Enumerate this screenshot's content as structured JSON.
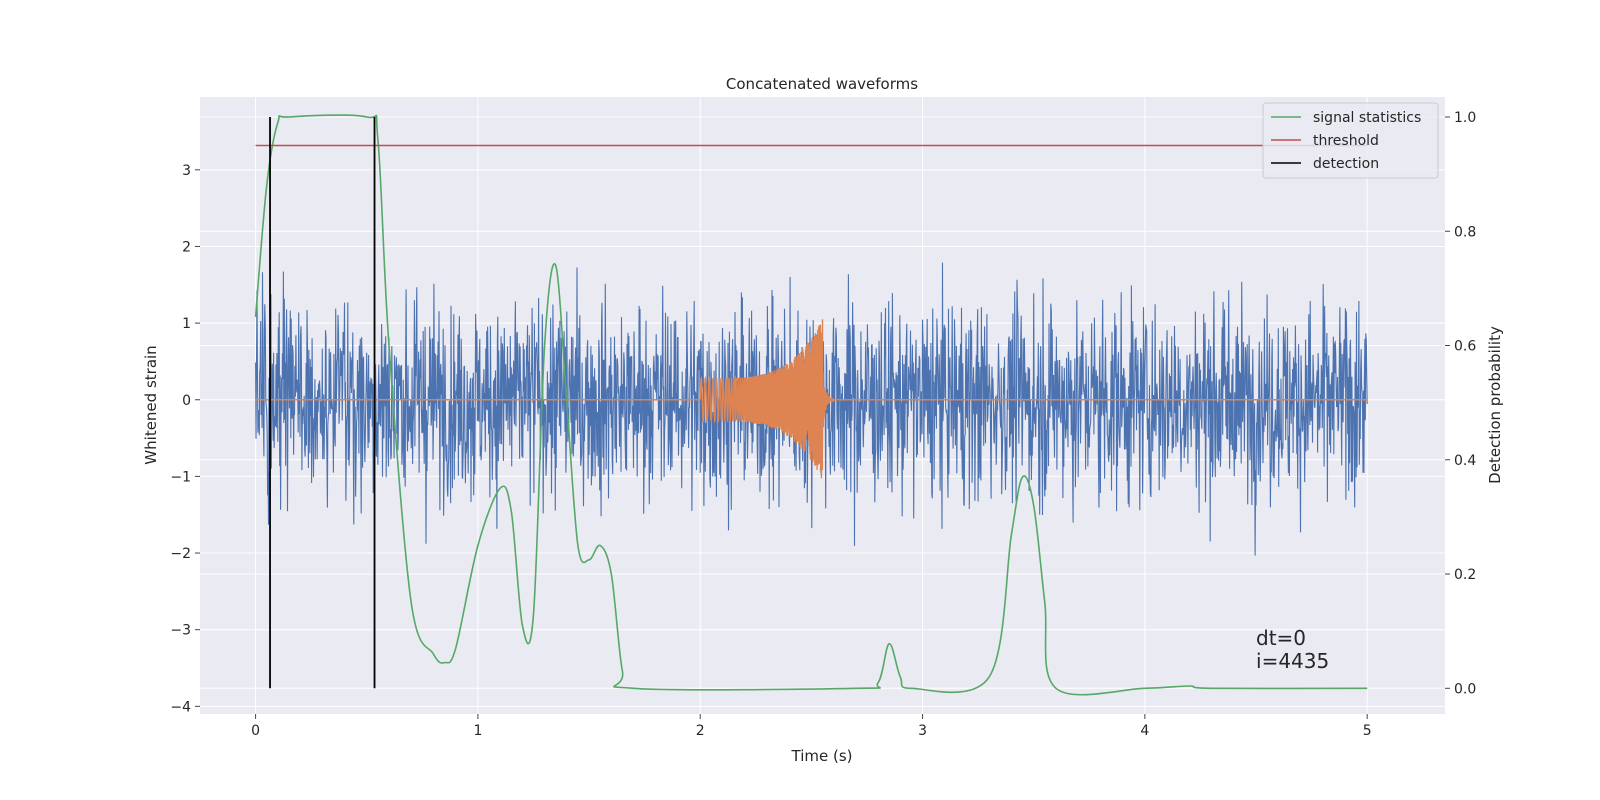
{
  "chart_data": {
    "type": "line",
    "title": "Concatenated waveforms",
    "xlabel": "Time (s)",
    "ylabel": "Whitened strain",
    "y2label": "Detection probability",
    "xlim": [
      -0.25,
      5.35
    ],
    "ylim": [
      -4.1,
      3.95
    ],
    "y2lim": [
      -0.045,
      1.035
    ],
    "xticks": [
      0,
      1,
      2,
      3,
      4,
      5
    ],
    "yticks": [
      -4,
      -3,
      -2,
      -1,
      0,
      1,
      2,
      3
    ],
    "y2ticks": [
      0.0,
      0.2,
      0.4,
      0.6,
      0.8,
      1.0
    ],
    "grid": true,
    "legend_position": "upper right",
    "colors": {
      "strain": "#4c72b0",
      "template": "#dd8452",
      "signal": "#55a868",
      "threshold": "#c44e52",
      "detection": "#000000",
      "background": "#eaeaf2"
    },
    "series": [
      {
        "name": "",
        "axis": "left",
        "description": "whitened strain noise, t = 0 to 5 s",
        "x_range": [
          0,
          5
        ],
        "values": []
      },
      {
        "name": "",
        "axis": "left",
        "description": "injected chirp, t = 2.0 to 2.55 s",
        "x_range": [
          2.0,
          2.55
        ],
        "amplitude_start": 0.28,
        "amplitude_peak": 1.05,
        "values": []
      },
      {
        "name": "signal statistics",
        "axis": "right",
        "x": [
          0,
          0.05,
          0.1,
          0.15,
          0.5,
          0.55,
          0.6,
          0.7,
          0.8,
          0.85,
          0.9,
          1.0,
          1.1,
          1.15,
          1.2,
          1.25,
          1.3,
          1.35,
          1.4,
          1.45,
          1.5,
          1.55,
          1.6,
          1.65,
          1.7,
          2.7,
          2.8,
          2.85,
          2.9,
          2.95,
          3.3,
          3.4,
          3.45,
          3.5,
          3.55,
          3.6,
          4.0,
          4.2,
          4.3,
          5.0
        ],
        "values": [
          0.65,
          0.88,
          0.99,
          1.0,
          1.0,
          0.96,
          0.6,
          0.15,
          0.06,
          0.045,
          0.07,
          0.25,
          0.35,
          0.31,
          0.11,
          0.13,
          0.6,
          0.74,
          0.5,
          0.25,
          0.225,
          0.25,
          0.2,
          0.03,
          0.0,
          0.0,
          0.01,
          0.078,
          0.02,
          0.0,
          0.02,
          0.27,
          0.37,
          0.32,
          0.15,
          0.0,
          0.0,
          0.004,
          0.0,
          0.0
        ]
      },
      {
        "name": "threshold",
        "axis": "right",
        "x": [
          0,
          5
        ],
        "values": [
          0.95,
          0.95
        ]
      },
      {
        "name": "detection",
        "axis": "right",
        "type": "vlines",
        "x": [
          0.065,
          0.535
        ],
        "range": [
          0.0,
          1.0
        ]
      }
    ],
    "annotations": [
      {
        "text": "dt=0",
        "x": 4.5,
        "y": -3.2
      },
      {
        "text": "i=4435",
        "x": 4.5,
        "y": -3.5
      }
    ]
  }
}
